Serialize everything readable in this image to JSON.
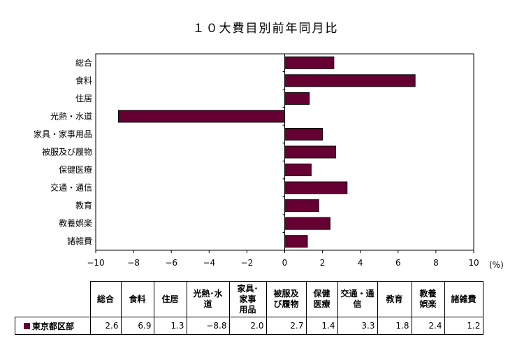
{
  "chart_data": {
    "type": "bar",
    "orientation": "horizontal",
    "title": "１０大費目別前年同月比",
    "categories": [
      "総合",
      "食料",
      "住居",
      "光熱・水道",
      "家具・家事用品",
      "被服及び履物",
      "保健医療",
      "交通・通信",
      "教育",
      "教養娯楽",
      "諸雑費"
    ],
    "series": [
      {
        "name": "東京都区部",
        "values": [
          2.6,
          6.9,
          1.3,
          -8.8,
          2.0,
          2.7,
          1.4,
          3.3,
          1.8,
          2.4,
          1.2
        ]
      }
    ],
    "xlim": [
      -10,
      10
    ],
    "xticks": [
      "−10",
      "−8",
      "−6",
      "−4",
      "−2",
      "0",
      "2",
      "4",
      "6",
      "8",
      "10"
    ],
    "unit": "(%)",
    "bar_color": "#660033",
    "grid": false
  },
  "table": {
    "headers": [
      [
        "総合"
      ],
      [
        "食料"
      ],
      [
        "住居"
      ],
      [
        "光熱･水",
        "道"
      ],
      [
        "家具･",
        "家事",
        "用品"
      ],
      [
        "被服及",
        "び履物"
      ],
      [
        "保健",
        "医療"
      ],
      [
        "交通・通",
        "信"
      ],
      [
        "教育"
      ],
      [
        "教養",
        "娯楽"
      ],
      [
        "諸雑費"
      ]
    ],
    "row_label": "東京都区部",
    "values": [
      "2.6",
      "6.9",
      "1.3",
      "−8.8",
      "2.0",
      "2.7",
      "1.4",
      "3.3",
      "1.8",
      "2.4",
      "1.2"
    ]
  }
}
